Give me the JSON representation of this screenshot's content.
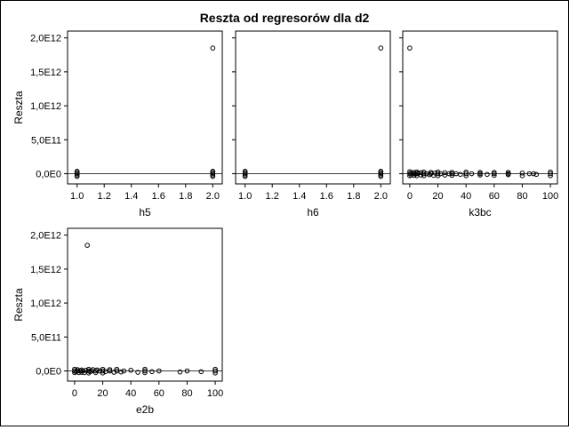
{
  "title": "Reszta od regresorów dla d2",
  "ylabel": "Reszta",
  "chart_data": [
    {
      "type": "scatter",
      "xlabel": "h5",
      "ylabel": "Reszta",
      "xlim": [
        0.93,
        2.07
      ],
      "ylim": [
        -150000000000,
        2100000000000
      ],
      "xticks": [
        1.0,
        1.2,
        1.4,
        1.6,
        1.8,
        2.0
      ],
      "xtick_labels": [
        "1.0",
        "1.2",
        "1.4",
        "1.6",
        "1.8",
        "2.0"
      ],
      "yticks": [
        0,
        500000000000,
        1000000000000,
        1500000000000,
        2000000000000
      ],
      "ytick_labels": [
        "0,0E0",
        "5,0E11",
        "1,0E12",
        "1,5E12",
        "2,0E12"
      ],
      "show_ytick_labels": true,
      "zero_line": true,
      "points": [
        {
          "x": 1.0,
          "y": -40000000000
        },
        {
          "x": 1.0,
          "y": -20000000000
        },
        {
          "x": 1.0,
          "y": 0
        },
        {
          "x": 1.0,
          "y": 20000000000
        },
        {
          "x": 1.0,
          "y": 35000000000
        },
        {
          "x": 2.0,
          "y": -40000000000
        },
        {
          "x": 2.0,
          "y": -20000000000
        },
        {
          "x": 2.0,
          "y": 0
        },
        {
          "x": 2.0,
          "y": 20000000000
        },
        {
          "x": 2.0,
          "y": 35000000000
        },
        {
          "x": 2.0,
          "y": 1850000000000
        }
      ]
    },
    {
      "type": "scatter",
      "xlabel": "h6",
      "ylabel": "",
      "xlim": [
        0.93,
        2.07
      ],
      "ylim": [
        -150000000000,
        2100000000000
      ],
      "xticks": [
        1.0,
        1.2,
        1.4,
        1.6,
        1.8,
        2.0
      ],
      "xtick_labels": [
        "1.0",
        "1.2",
        "1.4",
        "1.6",
        "1.8",
        "2.0"
      ],
      "yticks": [
        0,
        500000000000,
        1000000000000,
        1500000000000,
        2000000000000
      ],
      "ytick_labels": [],
      "show_ytick_labels": false,
      "zero_line": true,
      "points": [
        {
          "x": 1.0,
          "y": -40000000000
        },
        {
          "x": 1.0,
          "y": -20000000000
        },
        {
          "x": 1.0,
          "y": 0
        },
        {
          "x": 1.0,
          "y": 20000000000
        },
        {
          "x": 1.0,
          "y": 35000000000
        },
        {
          "x": 2.0,
          "y": -40000000000
        },
        {
          "x": 2.0,
          "y": -20000000000
        },
        {
          "x": 2.0,
          "y": 0
        },
        {
          "x": 2.0,
          "y": 20000000000
        },
        {
          "x": 2.0,
          "y": 35000000000
        },
        {
          "x": 2.0,
          "y": 1850000000000
        }
      ]
    },
    {
      "type": "scatter",
      "xlabel": "k3bc",
      "ylabel": "",
      "xlim": [
        -5,
        105
      ],
      "ylim": [
        -150000000000,
        2100000000000
      ],
      "xticks": [
        0,
        20,
        40,
        60,
        80,
        100
      ],
      "xtick_labels": [
        "0",
        "20",
        "40",
        "60",
        "80",
        "100"
      ],
      "yticks": [
        0,
        500000000000,
        1000000000000,
        1500000000000,
        2000000000000
      ],
      "ytick_labels": [],
      "show_ytick_labels": false,
      "zero_line": true,
      "points": [
        {
          "x": 0,
          "y": 1850000000000
        },
        {
          "x": 0,
          "y": -30000000000
        },
        {
          "x": 0,
          "y": 0
        },
        {
          "x": 0,
          "y": 30000000000
        },
        {
          "x": 1,
          "y": -20000000000
        },
        {
          "x": 1,
          "y": 15000000000
        },
        {
          "x": 2,
          "y": 0
        },
        {
          "x": 3,
          "y": -25000000000
        },
        {
          "x": 3,
          "y": 20000000000
        },
        {
          "x": 4,
          "y": 0
        },
        {
          "x": 5,
          "y": -30000000000
        },
        {
          "x": 5,
          "y": 0
        },
        {
          "x": 5,
          "y": 25000000000
        },
        {
          "x": 6,
          "y": 10000000000
        },
        {
          "x": 8,
          "y": -20000000000
        },
        {
          "x": 8,
          "y": 15000000000
        },
        {
          "x": 10,
          "y": -30000000000
        },
        {
          "x": 10,
          "y": 0
        },
        {
          "x": 10,
          "y": 25000000000
        },
        {
          "x": 12,
          "y": 0
        },
        {
          "x": 14,
          "y": -15000000000
        },
        {
          "x": 15,
          "y": 0
        },
        {
          "x": 15,
          "y": 20000000000
        },
        {
          "x": 17,
          "y": -25000000000
        },
        {
          "x": 18,
          "y": 10000000000
        },
        {
          "x": 20,
          "y": -30000000000
        },
        {
          "x": 20,
          "y": 0
        },
        {
          "x": 20,
          "y": 25000000000
        },
        {
          "x": 22,
          "y": 0
        },
        {
          "x": 25,
          "y": -20000000000
        },
        {
          "x": 25,
          "y": 15000000000
        },
        {
          "x": 28,
          "y": 0
        },
        {
          "x": 30,
          "y": -25000000000
        },
        {
          "x": 30,
          "y": 0
        },
        {
          "x": 30,
          "y": 20000000000
        },
        {
          "x": 33,
          "y": 0
        },
        {
          "x": 36,
          "y": -10000000000
        },
        {
          "x": 40,
          "y": -30000000000
        },
        {
          "x": 40,
          "y": 0
        },
        {
          "x": 40,
          "y": 25000000000
        },
        {
          "x": 44,
          "y": 0
        },
        {
          "x": 50,
          "y": -20000000000
        },
        {
          "x": 50,
          "y": 0
        },
        {
          "x": 50,
          "y": 20000000000
        },
        {
          "x": 55,
          "y": -10000000000
        },
        {
          "x": 60,
          "y": -25000000000
        },
        {
          "x": 60,
          "y": 0
        },
        {
          "x": 60,
          "y": 20000000000
        },
        {
          "x": 70,
          "y": -15000000000
        },
        {
          "x": 70,
          "y": 0
        },
        {
          "x": 70,
          "y": 20000000000
        },
        {
          "x": 80,
          "y": -30000000000
        },
        {
          "x": 80,
          "y": 10000000000
        },
        {
          "x": 85,
          "y": 0
        },
        {
          "x": 88,
          "y": 0
        },
        {
          "x": 90,
          "y": -10000000000
        },
        {
          "x": 100,
          "y": -30000000000
        },
        {
          "x": 100,
          "y": 0
        },
        {
          "x": 100,
          "y": 25000000000
        }
      ]
    },
    {
      "type": "scatter",
      "xlabel": "e2b",
      "ylabel": "Reszta",
      "xlim": [
        -5,
        105
      ],
      "ylim": [
        -150000000000,
        2100000000000
      ],
      "xticks": [
        0,
        20,
        40,
        60,
        80,
        100
      ],
      "xtick_labels": [
        "0",
        "20",
        "40",
        "60",
        "80",
        "100"
      ],
      "yticks": [
        0,
        500000000000,
        1000000000000,
        1500000000000,
        2000000000000
      ],
      "ytick_labels": [
        "0,0E0",
        "5,0E11",
        "1,0E12",
        "1,5E12",
        "2,0E12"
      ],
      "show_ytick_labels": true,
      "zero_line": true,
      "points": [
        {
          "x": 9,
          "y": 1850000000000
        },
        {
          "x": 0,
          "y": -25000000000
        },
        {
          "x": 0,
          "y": 0
        },
        {
          "x": 0,
          "y": 25000000000
        },
        {
          "x": 1,
          "y": -15000000000
        },
        {
          "x": 2,
          "y": 0
        },
        {
          "x": 2,
          "y": 20000000000
        },
        {
          "x": 3,
          "y": -25000000000
        },
        {
          "x": 4,
          "y": 0
        },
        {
          "x": 5,
          "y": -20000000000
        },
        {
          "x": 5,
          "y": 15000000000
        },
        {
          "x": 6,
          "y": 0
        },
        {
          "x": 7,
          "y": -25000000000
        },
        {
          "x": 8,
          "y": 10000000000
        },
        {
          "x": 10,
          "y": -30000000000
        },
        {
          "x": 10,
          "y": 0
        },
        {
          "x": 10,
          "y": 25000000000
        },
        {
          "x": 11,
          "y": -10000000000
        },
        {
          "x": 12,
          "y": 0
        },
        {
          "x": 13,
          "y": 20000000000
        },
        {
          "x": 15,
          "y": -25000000000
        },
        {
          "x": 15,
          "y": 0
        },
        {
          "x": 16,
          "y": 15000000000
        },
        {
          "x": 18,
          "y": 0
        },
        {
          "x": 20,
          "y": -30000000000
        },
        {
          "x": 20,
          "y": 0
        },
        {
          "x": 20,
          "y": 25000000000
        },
        {
          "x": 22,
          "y": -10000000000
        },
        {
          "x": 25,
          "y": 0
        },
        {
          "x": 25,
          "y": 20000000000
        },
        {
          "x": 28,
          "y": -20000000000
        },
        {
          "x": 30,
          "y": 0
        },
        {
          "x": 30,
          "y": 25000000000
        },
        {
          "x": 33,
          "y": -15000000000
        },
        {
          "x": 35,
          "y": 0
        },
        {
          "x": 40,
          "y": 10000000000
        },
        {
          "x": 45,
          "y": -20000000000
        },
        {
          "x": 50,
          "y": -25000000000
        },
        {
          "x": 50,
          "y": 0
        },
        {
          "x": 50,
          "y": 25000000000
        },
        {
          "x": 55,
          "y": -10000000000
        },
        {
          "x": 60,
          "y": 0
        },
        {
          "x": 75,
          "y": -15000000000
        },
        {
          "x": 80,
          "y": 0
        },
        {
          "x": 90,
          "y": -10000000000
        },
        {
          "x": 100,
          "y": -30000000000
        },
        {
          "x": 100,
          "y": 0
        },
        {
          "x": 100,
          "y": 25000000000
        }
      ]
    }
  ]
}
